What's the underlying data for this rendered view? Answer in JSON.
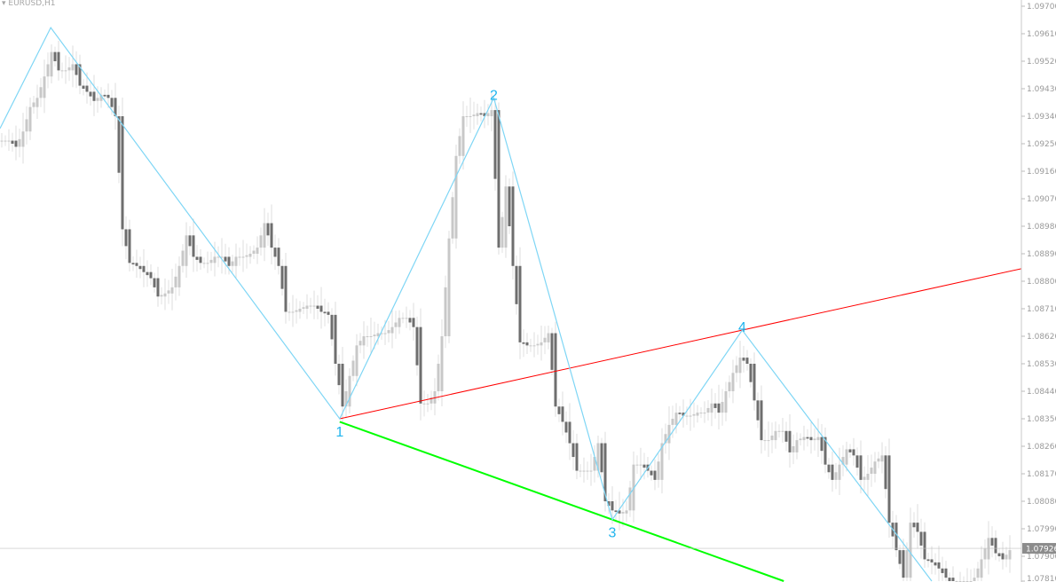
{
  "symbol_label": "▾ EURUSD,H1",
  "chart_data": {
    "type": "candlestick",
    "symbol": "EURUSD",
    "timeframe": "H1",
    "ylim": [
      1.0779,
      1.0972
    ],
    "y_ticks": [
      "1.09700",
      "1.09610",
      "1.09520",
      "1.09430",
      "1.09340",
      "1.09250",
      "1.09160",
      "1.09070",
      "1.08980",
      "1.08890",
      "1.08800",
      "1.08710",
      "1.08620",
      "1.08530",
      "1.08440",
      "1.08350",
      "1.08260",
      "1.08170",
      "1.08080",
      "1.07990",
      "1.07900",
      "1.07810"
    ],
    "current_price": "1.07926",
    "closes": [
      1.0926,
      1.0926,
      1.0924,
      1.0929,
      1.0937,
      1.094,
      1.0947,
      1.0955,
      1.0949,
      1.0949,
      1.0951,
      1.0944,
      1.0942,
      1.0939,
      1.0941,
      1.094,
      1.0934,
      1.0897,
      1.0886,
      1.0885,
      1.0883,
      1.0881,
      1.0875,
      1.0876,
      1.0878,
      1.0885,
      1.0895,
      1.0888,
      1.0886,
      1.0886,
      1.0888,
      1.0888,
      1.0885,
      1.0888,
      1.0888,
      1.0889,
      1.0891,
      1.0899,
      1.0891,
      1.0885,
      1.087,
      1.087,
      1.0871,
      1.0872,
      1.0872,
      1.087,
      1.0869,
      1.0853,
      1.0839,
      1.0849,
      1.0859,
      1.0862,
      1.0862,
      1.0863,
      1.0863,
      1.0865,
      1.0868,
      1.0868,
      1.0865,
      1.084,
      1.084,
      1.0844,
      1.0862,
      1.0894,
      1.0921,
      1.0934,
      1.0934,
      1.0935,
      1.0934,
      1.0936,
      1.0891,
      1.0911,
      1.0885,
      1.086,
      1.0859,
      1.0859,
      1.086,
      1.0863,
      1.0839,
      1.0834,
      1.0827,
      1.0818,
      1.0818,
      1.0818,
      1.0827,
      1.0808,
      1.0805,
      1.0804,
      1.0805,
      1.082,
      1.082,
      1.0818,
      1.0815,
      1.0827,
      1.0833,
      1.0837,
      1.0836,
      1.0836,
      1.0837,
      1.0837,
      1.084,
      1.0837,
      1.0844,
      1.085,
      1.0855,
      1.0853,
      1.0841,
      1.0828,
      1.0828,
      1.0831,
      1.0831,
      1.0824,
      1.0828,
      1.0829,
      1.0828,
      1.0829,
      1.082,
      1.0815,
      1.082,
      1.0825,
      1.0823,
      1.0815,
      1.0817,
      1.0821,
      1.0823,
      1.0801,
      1.0792,
      1.0783,
      1.0801,
      1.0798,
      1.0789,
      1.0788,
      1.0786,
      1.0783,
      1.0779,
      1.078,
      1.078,
      1.0783,
      1.0789,
      1.0796,
      1.0791,
      1.0789,
      1.0792
    ],
    "zigzag": [
      {
        "bar": -0.25,
        "price": 1.093,
        "label": ""
      },
      {
        "bar": 6.9,
        "price": 1.0963,
        "label": ""
      },
      {
        "bar": 47.6,
        "price": 1.0835,
        "label": "1"
      },
      {
        "bar": 69.3,
        "price": 1.094,
        "label": "2"
      },
      {
        "bar": 86.0,
        "price": 1.0802,
        "label": "3"
      },
      {
        "bar": 104.3,
        "price": 1.0864,
        "label": "4"
      },
      {
        "bar": 131.0,
        "price": 1.0781,
        "label": ""
      }
    ],
    "trendlines": [
      {
        "name": "upper",
        "color": "#ff0000",
        "from": {
          "bar": 47.6,
          "price": 1.0835
        },
        "through": {
          "bar": 104.3,
          "price": 1.0864
        }
      },
      {
        "name": "lower",
        "color": "#00ff00",
        "from": {
          "bar": 47.6,
          "price": 1.0834
        },
        "through": {
          "bar": 86.0,
          "price": 1.0802
        }
      }
    ],
    "colors": {
      "bull": "#c8c8c8",
      "bear": "#6e6e6e",
      "zigzag": "#7fd6f5",
      "labels": "#1fb4ee",
      "axis": "#c8c8c8"
    },
    "grid": false
  }
}
